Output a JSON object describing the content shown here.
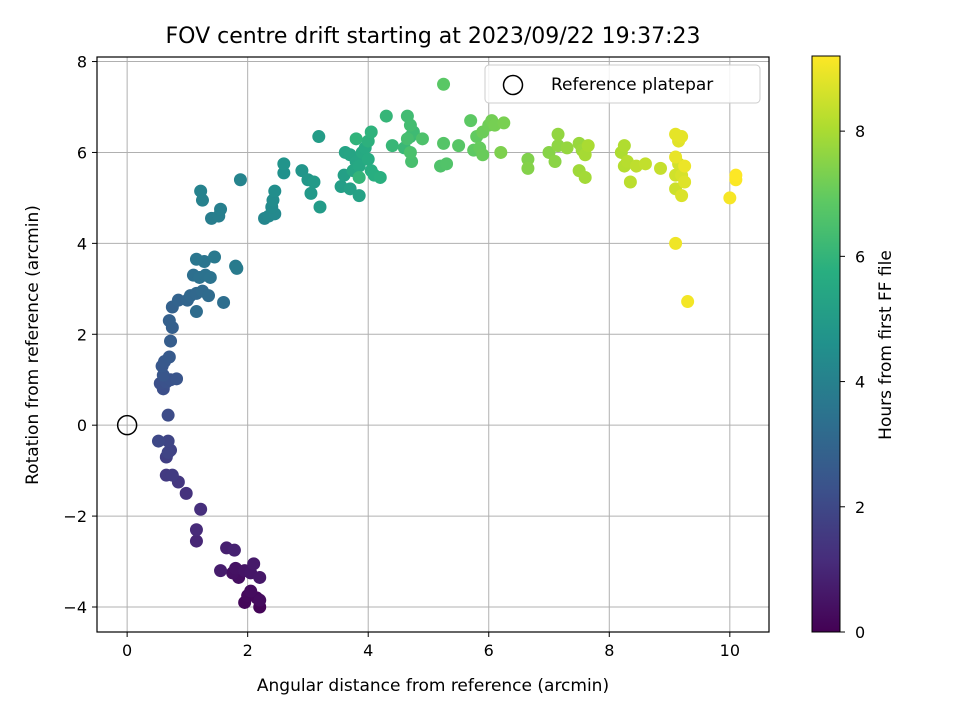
{
  "chart_data": {
    "type": "scatter",
    "title": "FOV centre drift starting at 2023/09/22 19:37:23",
    "xlabel": "Angular distance from reference (arcmin)",
    "ylabel": "Rotation from reference (arcmin)",
    "xlim": [
      -0.5,
      10.65
    ],
    "ylim": [
      -4.55,
      8.1
    ],
    "xticks": [
      0,
      2,
      4,
      6,
      8,
      10
    ],
    "yticks": [
      -4,
      -2,
      0,
      2,
      4,
      6,
      8
    ],
    "grid": true,
    "legend": {
      "position": "top-right",
      "entries": [
        "Reference platepar"
      ]
    },
    "reference_point": {
      "x": 0,
      "y": 0,
      "marker": "open-circle",
      "label": "Reference platepar"
    },
    "colorbar": {
      "label": "Hours from first FF file",
      "range": [
        0,
        9.2
      ],
      "ticks": [
        0,
        2,
        4,
        6,
        8
      ],
      "colormap": "viridis"
    },
    "points": [
      {
        "x": 2.2,
        "y": -4.0,
        "h": 0.1
      },
      {
        "x": 1.95,
        "y": -3.9,
        "h": 0.15
      },
      {
        "x": 2.0,
        "y": -3.75,
        "h": 0.2
      },
      {
        "x": 2.15,
        "y": -3.8,
        "h": 0.2
      },
      {
        "x": 2.2,
        "y": -3.85,
        "h": 0.3
      },
      {
        "x": 2.05,
        "y": -3.65,
        "h": 0.3
      },
      {
        "x": 1.85,
        "y": -3.35,
        "h": 0.35
      },
      {
        "x": 1.75,
        "y": -3.25,
        "h": 0.4
      },
      {
        "x": 1.8,
        "y": -3.15,
        "h": 0.45
      },
      {
        "x": 1.95,
        "y": -3.2,
        "h": 0.5
      },
      {
        "x": 2.05,
        "y": -3.25,
        "h": 0.55
      },
      {
        "x": 2.2,
        "y": -3.35,
        "h": 0.6
      },
      {
        "x": 2.1,
        "y": -3.05,
        "h": 0.65
      },
      {
        "x": 1.55,
        "y": -3.2,
        "h": 0.7
      },
      {
        "x": 1.65,
        "y": -2.7,
        "h": 0.8
      },
      {
        "x": 1.78,
        "y": -2.75,
        "h": 0.85
      },
      {
        "x": 1.15,
        "y": -2.55,
        "h": 1.0
      },
      {
        "x": 1.15,
        "y": -2.3,
        "h": 1.1
      },
      {
        "x": 1.22,
        "y": -1.85,
        "h": 1.2
      },
      {
        "x": 0.98,
        "y": -1.5,
        "h": 1.3
      },
      {
        "x": 0.85,
        "y": -1.25,
        "h": 1.45
      },
      {
        "x": 0.65,
        "y": -1.1,
        "h": 1.55
      },
      {
        "x": 0.75,
        "y": -1.1,
        "h": 1.6
      },
      {
        "x": 0.65,
        "y": -0.7,
        "h": 1.7
      },
      {
        "x": 0.72,
        "y": -0.55,
        "h": 1.8
      },
      {
        "x": 0.68,
        "y": -0.6,
        "h": 1.85
      },
      {
        "x": 0.68,
        "y": -0.35,
        "h": 1.9
      },
      {
        "x": 0.52,
        "y": -0.35,
        "h": 2.0
      },
      {
        "x": 0.68,
        "y": 0.22,
        "h": 2.1
      },
      {
        "x": 0.6,
        "y": 0.8,
        "h": 2.2
      },
      {
        "x": 0.55,
        "y": 0.92,
        "h": 2.25
      },
      {
        "x": 0.65,
        "y": 0.95,
        "h": 2.3
      },
      {
        "x": 0.72,
        "y": 1.0,
        "h": 2.35
      },
      {
        "x": 0.82,
        "y": 1.02,
        "h": 2.4
      },
      {
        "x": 0.6,
        "y": 1.1,
        "h": 2.45
      },
      {
        "x": 0.58,
        "y": 1.3,
        "h": 2.5
      },
      {
        "x": 0.62,
        "y": 1.4,
        "h": 2.55
      },
      {
        "x": 0.7,
        "y": 1.5,
        "h": 2.6
      },
      {
        "x": 0.72,
        "y": 1.85,
        "h": 2.7
      },
      {
        "x": 0.75,
        "y": 2.15,
        "h": 2.75
      },
      {
        "x": 0.7,
        "y": 2.3,
        "h": 2.8
      },
      {
        "x": 0.75,
        "y": 2.6,
        "h": 2.85
      },
      {
        "x": 0.85,
        "y": 2.75,
        "h": 2.9
      },
      {
        "x": 1.0,
        "y": 2.75,
        "h": 3.0
      },
      {
        "x": 1.05,
        "y": 2.85,
        "h": 3.05
      },
      {
        "x": 1.15,
        "y": 2.9,
        "h": 3.1
      },
      {
        "x": 1.25,
        "y": 2.95,
        "h": 3.15
      },
      {
        "x": 1.35,
        "y": 2.85,
        "h": 3.2
      },
      {
        "x": 1.15,
        "y": 2.5,
        "h": 3.25
      },
      {
        "x": 1.6,
        "y": 2.7,
        "h": 3.3
      },
      {
        "x": 1.1,
        "y": 3.3,
        "h": 3.35
      },
      {
        "x": 1.2,
        "y": 3.25,
        "h": 3.4
      },
      {
        "x": 1.3,
        "y": 3.3,
        "h": 3.45
      },
      {
        "x": 1.38,
        "y": 3.25,
        "h": 3.5
      },
      {
        "x": 1.28,
        "y": 3.6,
        "h": 3.55
      },
      {
        "x": 1.15,
        "y": 3.65,
        "h": 3.6
      },
      {
        "x": 1.45,
        "y": 3.7,
        "h": 3.7
      },
      {
        "x": 1.8,
        "y": 3.5,
        "h": 3.75
      },
      {
        "x": 1.82,
        "y": 3.45,
        "h": 3.8
      },
      {
        "x": 1.4,
        "y": 4.55,
        "h": 3.85
      },
      {
        "x": 1.52,
        "y": 4.6,
        "h": 3.9
      },
      {
        "x": 1.55,
        "y": 4.75,
        "h": 3.95
      },
      {
        "x": 1.25,
        "y": 4.95,
        "h": 4.0
      },
      {
        "x": 1.22,
        "y": 5.15,
        "h": 4.05
      },
      {
        "x": 1.88,
        "y": 5.4,
        "h": 4.1
      },
      {
        "x": 2.28,
        "y": 4.55,
        "h": 4.2
      },
      {
        "x": 2.35,
        "y": 4.6,
        "h": 4.25
      },
      {
        "x": 2.45,
        "y": 4.65,
        "h": 4.3
      },
      {
        "x": 2.4,
        "y": 4.8,
        "h": 4.35
      },
      {
        "x": 2.42,
        "y": 4.95,
        "h": 4.4
      },
      {
        "x": 2.45,
        "y": 5.15,
        "h": 4.5
      },
      {
        "x": 2.6,
        "y": 5.55,
        "h": 4.6
      },
      {
        "x": 2.6,
        "y": 5.75,
        "h": 4.7
      },
      {
        "x": 2.9,
        "y": 5.6,
        "h": 4.75
      },
      {
        "x": 3.0,
        "y": 5.4,
        "h": 4.85
      },
      {
        "x": 3.05,
        "y": 5.1,
        "h": 4.9
      },
      {
        "x": 3.1,
        "y": 5.35,
        "h": 4.95
      },
      {
        "x": 3.2,
        "y": 4.8,
        "h": 5.0
      },
      {
        "x": 3.18,
        "y": 6.35,
        "h": 5.05
      },
      {
        "x": 3.55,
        "y": 5.25,
        "h": 5.1
      },
      {
        "x": 3.6,
        "y": 5.5,
        "h": 5.15
      },
      {
        "x": 3.7,
        "y": 5.2,
        "h": 5.2
      },
      {
        "x": 3.85,
        "y": 5.05,
        "h": 5.25
      },
      {
        "x": 3.62,
        "y": 6.0,
        "h": 5.3
      },
      {
        "x": 3.7,
        "y": 5.95,
        "h": 5.35
      },
      {
        "x": 3.8,
        "y": 5.8,
        "h": 5.4
      },
      {
        "x": 3.75,
        "y": 5.6,
        "h": 5.45
      },
      {
        "x": 3.85,
        "y": 5.7,
        "h": 5.5
      },
      {
        "x": 3.9,
        "y": 6.0,
        "h": 5.55
      },
      {
        "x": 3.95,
        "y": 6.1,
        "h": 5.6
      },
      {
        "x": 4.0,
        "y": 5.85,
        "h": 5.65
      },
      {
        "x": 4.05,
        "y": 5.6,
        "h": 5.7
      },
      {
        "x": 4.1,
        "y": 5.5,
        "h": 5.75
      },
      {
        "x": 4.2,
        "y": 5.45,
        "h": 5.8
      },
      {
        "x": 4.0,
        "y": 6.25,
        "h": 5.85
      },
      {
        "x": 4.05,
        "y": 6.45,
        "h": 5.9
      },
      {
        "x": 3.8,
        "y": 6.3,
        "h": 5.95
      },
      {
        "x": 3.85,
        "y": 5.45,
        "h": 6.0
      },
      {
        "x": 4.3,
        "y": 6.8,
        "h": 6.05
      },
      {
        "x": 4.4,
        "y": 6.15,
        "h": 6.1
      },
      {
        "x": 4.6,
        "y": 6.1,
        "h": 6.15
      },
      {
        "x": 4.7,
        "y": 6.35,
        "h": 6.2
      },
      {
        "x": 4.75,
        "y": 6.45,
        "h": 6.25
      },
      {
        "x": 4.65,
        "y": 6.8,
        "h": 6.3
      },
      {
        "x": 4.7,
        "y": 6.6,
        "h": 6.35
      },
      {
        "x": 4.65,
        "y": 6.3,
        "h": 6.4
      },
      {
        "x": 4.72,
        "y": 5.8,
        "h": 6.45
      },
      {
        "x": 4.7,
        "y": 6.0,
        "h": 6.5
      },
      {
        "x": 4.9,
        "y": 6.3,
        "h": 6.55
      },
      {
        "x": 5.2,
        "y": 5.7,
        "h": 6.6
      },
      {
        "x": 5.3,
        "y": 5.75,
        "h": 6.65
      },
      {
        "x": 5.25,
        "y": 6.2,
        "h": 6.7
      },
      {
        "x": 5.5,
        "y": 6.15,
        "h": 6.75
      },
      {
        "x": 5.25,
        "y": 7.5,
        "h": 6.8
      },
      {
        "x": 5.7,
        "y": 6.7,
        "h": 6.85
      },
      {
        "x": 5.75,
        "y": 6.05,
        "h": 6.9
      },
      {
        "x": 5.8,
        "y": 6.35,
        "h": 6.95
      },
      {
        "x": 5.85,
        "y": 6.1,
        "h": 7.0
      },
      {
        "x": 5.9,
        "y": 5.95,
        "h": 7.05
      },
      {
        "x": 5.9,
        "y": 6.45,
        "h": 7.1
      },
      {
        "x": 6.0,
        "y": 6.6,
        "h": 7.15
      },
      {
        "x": 6.05,
        "y": 6.7,
        "h": 7.2
      },
      {
        "x": 6.1,
        "y": 6.6,
        "h": 7.25
      },
      {
        "x": 6.25,
        "y": 6.65,
        "h": 7.3
      },
      {
        "x": 6.2,
        "y": 6.0,
        "h": 7.35
      },
      {
        "x": 6.65,
        "y": 5.85,
        "h": 7.4
      },
      {
        "x": 6.65,
        "y": 5.65,
        "h": 7.45
      },
      {
        "x": 7.0,
        "y": 6.0,
        "h": 7.5
      },
      {
        "x": 7.1,
        "y": 5.8,
        "h": 7.55
      },
      {
        "x": 7.15,
        "y": 6.15,
        "h": 7.6
      },
      {
        "x": 7.15,
        "y": 6.4,
        "h": 7.65
      },
      {
        "x": 7.3,
        "y": 6.1,
        "h": 7.7
      },
      {
        "x": 7.5,
        "y": 6.2,
        "h": 7.75
      },
      {
        "x": 7.55,
        "y": 6.05,
        "h": 7.8
      },
      {
        "x": 7.5,
        "y": 5.6,
        "h": 7.85
      },
      {
        "x": 7.6,
        "y": 5.45,
        "h": 7.9
      },
      {
        "x": 7.6,
        "y": 5.95,
        "h": 7.95
      },
      {
        "x": 7.65,
        "y": 6.15,
        "h": 8.0
      },
      {
        "x": 8.2,
        "y": 6.0,
        "h": 8.05
      },
      {
        "x": 8.25,
        "y": 6.15,
        "h": 8.1
      },
      {
        "x": 8.25,
        "y": 5.7,
        "h": 8.15
      },
      {
        "x": 8.3,
        "y": 5.8,
        "h": 8.2
      },
      {
        "x": 8.35,
        "y": 5.35,
        "h": 8.25
      },
      {
        "x": 8.45,
        "y": 5.7,
        "h": 8.3
      },
      {
        "x": 8.6,
        "y": 5.75,
        "h": 8.35
      },
      {
        "x": 8.85,
        "y": 5.65,
        "h": 8.4
      },
      {
        "x": 9.1,
        "y": 5.2,
        "h": 8.5
      },
      {
        "x": 9.1,
        "y": 5.5,
        "h": 8.55
      },
      {
        "x": 9.15,
        "y": 5.75,
        "h": 8.6
      },
      {
        "x": 9.2,
        "y": 5.5,
        "h": 8.65
      },
      {
        "x": 9.2,
        "y": 5.05,
        "h": 8.7
      },
      {
        "x": 9.25,
        "y": 5.35,
        "h": 8.75
      },
      {
        "x": 9.15,
        "y": 6.25,
        "h": 8.8
      },
      {
        "x": 9.1,
        "y": 6.4,
        "h": 8.85
      },
      {
        "x": 9.2,
        "y": 6.35,
        "h": 8.85
      },
      {
        "x": 9.1,
        "y": 5.9,
        "h": 8.9
      },
      {
        "x": 9.25,
        "y": 5.7,
        "h": 8.95
      },
      {
        "x": 9.1,
        "y": 4.0,
        "h": 9.0
      },
      {
        "x": 9.3,
        "y": 2.72,
        "h": 9.05
      },
      {
        "x": 10.0,
        "y": 5.0,
        "h": 9.1
      },
      {
        "x": 10.1,
        "y": 5.4,
        "h": 9.15
      },
      {
        "x": 10.1,
        "y": 5.5,
        "h": 9.2
      }
    ]
  }
}
